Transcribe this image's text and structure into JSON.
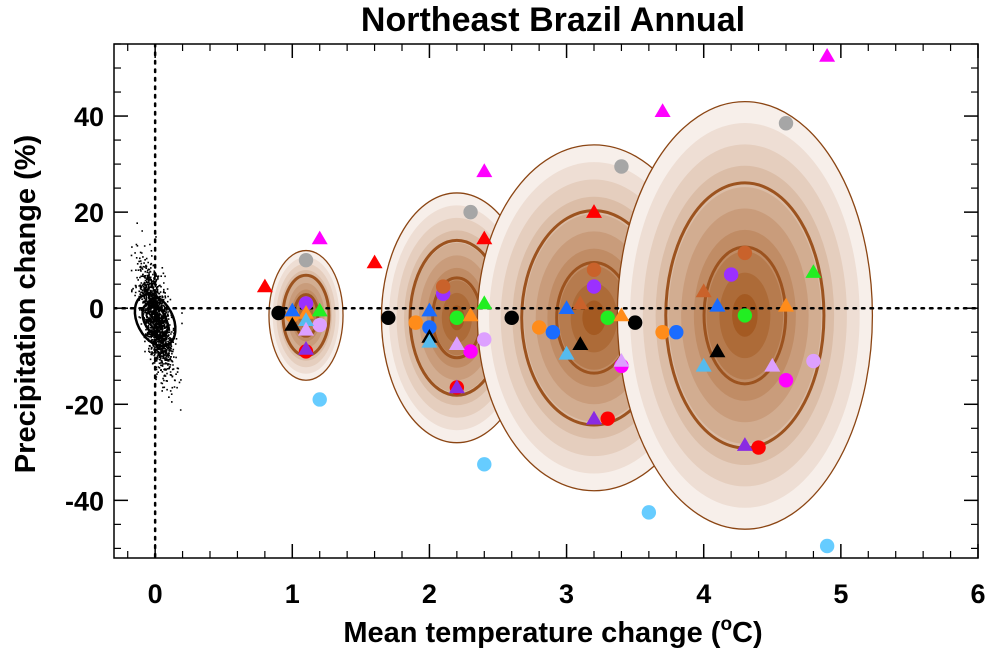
{
  "chart_data": {
    "type": "scatter",
    "title": "Northeast Brazil Annual",
    "xlabel": "Mean temperature change (",
    "xlabel_sup": "o",
    "xlabel_end": "C)",
    "ylabel": "Precipitation change (%)",
    "xlim": [
      -0.3,
      6.0
    ],
    "ylim": [
      -52,
      55
    ],
    "xticks": [
      0,
      1,
      2,
      3,
      4,
      5,
      6
    ],
    "xtick_labels": [
      "0",
      "1",
      "2",
      "3",
      "4",
      "5",
      "6"
    ],
    "yticks": [
      -40,
      -20,
      0,
      20,
      40
    ],
    "ytick_labels": [
      "-40",
      "-20",
      "0",
      "20",
      "40"
    ],
    "reference_lines": {
      "x": 0,
      "y": 0,
      "style": "dotted"
    },
    "colors": {
      "ellipse_edge": "#8b4513",
      "ellipse_outer": "#f7efea",
      "ellipse_inner": "#a45a22",
      "contour": "#9c531f"
    },
    "control_scatter": {
      "description": "dense black cloud of points",
      "center": [
        0.0,
        -2.0
      ],
      "x_spread": 0.06,
      "y_spread": 4.5,
      "slope": -55,
      "count": 1500,
      "outline_center": [
        0.0,
        -2.5
      ],
      "outline_rx": 0.13,
      "outline_ry": 12.0
    },
    "distributions": [
      {
        "center": [
          1.1,
          -1.5
        ],
        "rx": 0.27,
        "ry": 13.5,
        "contours": [
          0.32,
          0.62
        ]
      },
      {
        "center": [
          2.2,
          -2.0
        ],
        "rx": 0.55,
        "ry": 26.0,
        "contours": [
          0.32,
          0.62
        ]
      },
      {
        "center": [
          3.2,
          -2.0
        ],
        "rx": 0.85,
        "ry": 36.0,
        "contours": [
          0.32,
          0.62
        ]
      },
      {
        "center": [
          4.3,
          -1.5
        ],
        "rx": 0.93,
        "ry": 44.5,
        "contours": [
          0.32,
          0.62
        ]
      }
    ],
    "series": [
      {
        "name": "black-circles",
        "marker": "circle",
        "color": "#000000",
        "points": [
          [
            0.9,
            -1
          ],
          [
            1.7,
            -2
          ],
          [
            2.6,
            -2
          ],
          [
            3.5,
            -3
          ]
        ]
      },
      {
        "name": "grey-circles",
        "marker": "circle",
        "color": "#a6a6a6",
        "points": [
          [
            1.1,
            10
          ],
          [
            2.3,
            20
          ],
          [
            3.4,
            29.5
          ],
          [
            4.6,
            38.5
          ]
        ]
      },
      {
        "name": "lightblue-circles",
        "marker": "circle",
        "color": "#66ccff",
        "points": [
          [
            1.2,
            -19
          ],
          [
            2.4,
            -32.5
          ],
          [
            3.6,
            -42.5
          ],
          [
            4.9,
            -49.5
          ]
        ]
      },
      {
        "name": "red-circles",
        "marker": "circle",
        "color": "#ff0000",
        "points": [
          [
            1.1,
            -9
          ],
          [
            2.2,
            -16.5
          ],
          [
            3.3,
            -23
          ],
          [
            4.4,
            -29
          ]
        ]
      },
      {
        "name": "orange-circles",
        "marker": "circle",
        "color": "#ff8c1a",
        "points": [
          [
            1.0,
            -1.5
          ],
          [
            1.9,
            -3
          ],
          [
            2.8,
            -4
          ],
          [
            3.7,
            -5
          ]
        ]
      },
      {
        "name": "blue-circles",
        "marker": "circle",
        "color": "#1a6cff",
        "points": [
          [
            2.0,
            -4
          ],
          [
            2.9,
            -5
          ],
          [
            3.8,
            -5
          ]
        ]
      },
      {
        "name": "green-circles",
        "marker": "circle",
        "color": "#22ee22",
        "points": [
          [
            2.2,
            -2
          ],
          [
            3.3,
            -2
          ],
          [
            4.3,
            -1.5
          ]
        ]
      },
      {
        "name": "magenta-circles",
        "marker": "circle",
        "color": "#ff00ff",
        "points": [
          [
            2.3,
            -9
          ],
          [
            3.4,
            -12
          ],
          [
            4.6,
            -15
          ]
        ]
      },
      {
        "name": "violet-circles",
        "marker": "circle",
        "color": "#9b30ff",
        "points": [
          [
            1.1,
            1
          ],
          [
            2.1,
            3
          ],
          [
            3.2,
            4.5
          ],
          [
            4.2,
            7
          ]
        ]
      },
      {
        "name": "lavender-circles",
        "marker": "circle",
        "color": "#dda0ff",
        "points": [
          [
            1.2,
            -3.5
          ],
          [
            2.4,
            -6.5
          ],
          [
            4.8,
            -11
          ]
        ]
      },
      {
        "name": "brown-circles",
        "marker": "circle",
        "color": "#c9622b",
        "points": [
          [
            2.1,
            4.5
          ],
          [
            3.2,
            8
          ],
          [
            4.3,
            11.5
          ]
        ]
      },
      {
        "name": "red-triangles",
        "marker": "triangle",
        "color": "#ff0000",
        "points": [
          [
            0.8,
            4.5
          ],
          [
            1.6,
            9.5
          ],
          [
            2.4,
            14.5
          ],
          [
            3.2,
            20
          ]
        ]
      },
      {
        "name": "magenta-triangles",
        "marker": "triangle",
        "color": "#ff00ff",
        "points": [
          [
            1.2,
            14.5
          ],
          [
            2.4,
            28.5
          ],
          [
            3.7,
            41
          ],
          [
            4.9,
            52.5
          ]
        ]
      },
      {
        "name": "green-triangles",
        "marker": "triangle",
        "color": "#22ee22",
        "points": [
          [
            1.2,
            -0.5
          ],
          [
            2.4,
            1
          ],
          [
            4.8,
            7.5
          ]
        ]
      },
      {
        "name": "orange-triangles",
        "marker": "triangle",
        "color": "#ff8c1a",
        "points": [
          [
            1.1,
            -1
          ],
          [
            2.3,
            -1.5
          ],
          [
            3.4,
            -1.5
          ],
          [
            4.6,
            0.5
          ]
        ]
      },
      {
        "name": "blue-triangles",
        "marker": "triangle",
        "color": "#1a6cff",
        "points": [
          [
            1.0,
            -0.5
          ],
          [
            2.0,
            -0.5
          ],
          [
            3.0,
            0
          ],
          [
            4.1,
            0.5
          ]
        ]
      },
      {
        "name": "black-triangles",
        "marker": "triangle",
        "color": "#000000",
        "points": [
          [
            1.0,
            -3.5
          ],
          [
            2.0,
            -6
          ],
          [
            3.1,
            -7.5
          ],
          [
            4.1,
            -9
          ]
        ]
      },
      {
        "name": "skyblue-triangles",
        "marker": "triangle",
        "color": "#55bbee",
        "points": [
          [
            1.1,
            -2.5
          ],
          [
            2.0,
            -7
          ],
          [
            3.0,
            -9.5
          ],
          [
            4.0,
            -12
          ]
        ]
      },
      {
        "name": "lavender-triangles",
        "marker": "triangle",
        "color": "#dda0ff",
        "points": [
          [
            1.1,
            -4.5
          ],
          [
            2.2,
            -7.5
          ],
          [
            3.4,
            -11
          ],
          [
            4.5,
            -12
          ]
        ]
      },
      {
        "name": "purple-triangles",
        "marker": "triangle",
        "color": "#8a2be2",
        "points": [
          [
            1.1,
            -8.5
          ],
          [
            2.2,
            -16.5
          ],
          [
            3.2,
            -23
          ],
          [
            4.3,
            -28.5
          ]
        ]
      },
      {
        "name": "brown-triangles",
        "marker": "triangle",
        "color": "#c9622b",
        "points": [
          [
            3.1,
            1
          ],
          [
            4.0,
            3.5
          ]
        ]
      }
    ]
  }
}
